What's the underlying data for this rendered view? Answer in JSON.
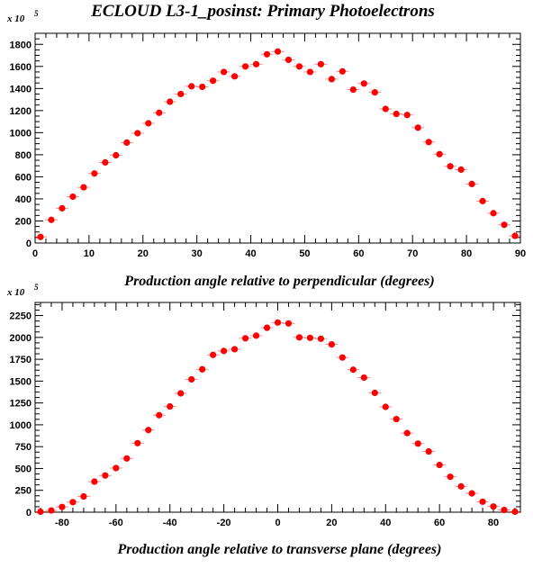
{
  "title": "ECLOUD L3-1_posinst: Primary Photoelectrons",
  "marker_color": "#ff0000",
  "chart_data": [
    {
      "type": "scatter",
      "xlabel": "Production angle relative to perpendicular (degrees)",
      "ylabel": "",
      "y_scale_label": "x 10",
      "y_scale_exponent": "5",
      "xlim": [
        0,
        90
      ],
      "ylim": [
        0,
        1900
      ],
      "xticks": [
        0,
        10,
        20,
        30,
        40,
        50,
        60,
        70,
        80,
        90
      ],
      "yticks": [
        0,
        200,
        400,
        600,
        800,
        1000,
        1200,
        1400,
        1600,
        1800
      ],
      "series": [
        {
          "x": [
            1,
            3,
            5,
            7,
            9,
            11,
            13,
            15,
            17,
            19,
            21,
            23,
            25,
            27,
            29,
            31,
            33,
            35,
            37,
            39,
            41,
            43,
            45,
            47,
            49,
            51,
            53,
            55,
            57,
            59,
            61,
            63,
            65,
            67,
            69,
            71,
            73,
            75,
            77,
            79,
            81,
            83,
            85,
            87,
            89
          ],
          "y": [
            55,
            210,
            315,
            420,
            505,
            630,
            730,
            795,
            910,
            995,
            1085,
            1180,
            1280,
            1350,
            1420,
            1415,
            1470,
            1550,
            1510,
            1600,
            1620,
            1710,
            1735,
            1660,
            1600,
            1550,
            1620,
            1485,
            1555,
            1390,
            1445,
            1365,
            1215,
            1170,
            1160,
            1045,
            915,
            805,
            695,
            665,
            535,
            380,
            270,
            165,
            65
          ]
        }
      ]
    },
    {
      "type": "scatter",
      "xlabel": "Production angle relative to transverse plane (degrees)",
      "ylabel": "",
      "y_scale_label": "x 10",
      "y_scale_exponent": "5",
      "xlim": [
        -90,
        90
      ],
      "ylim": [
        0,
        2400
      ],
      "xticks": [
        -80,
        -60,
        -40,
        -20,
        0,
        20,
        40,
        60,
        80
      ],
      "yticks": [
        0,
        250,
        500,
        750,
        1000,
        1250,
        1500,
        1750,
        2000,
        2250
      ],
      "series": [
        {
          "x": [
            -88,
            -84,
            -80,
            -76,
            -72,
            -68,
            -64,
            -60,
            -56,
            -52,
            -48,
            -44,
            -40,
            -36,
            -32,
            -28,
            -24,
            -20,
            -16,
            -12,
            -8,
            -4,
            0,
            4,
            8,
            12,
            16,
            20,
            24,
            28,
            32,
            36,
            40,
            44,
            48,
            52,
            56,
            60,
            64,
            68,
            72,
            76,
            80,
            84,
            88
          ],
          "y": [
            5,
            20,
            60,
            115,
            180,
            350,
            420,
            505,
            615,
            790,
            940,
            1110,
            1210,
            1360,
            1520,
            1635,
            1800,
            1845,
            1865,
            1990,
            2020,
            2110,
            2170,
            2160,
            2000,
            1995,
            1985,
            1920,
            1770,
            1630,
            1540,
            1365,
            1205,
            1065,
            905,
            785,
            695,
            540,
            405,
            295,
            215,
            120,
            65,
            25,
            5
          ]
        }
      ]
    }
  ]
}
